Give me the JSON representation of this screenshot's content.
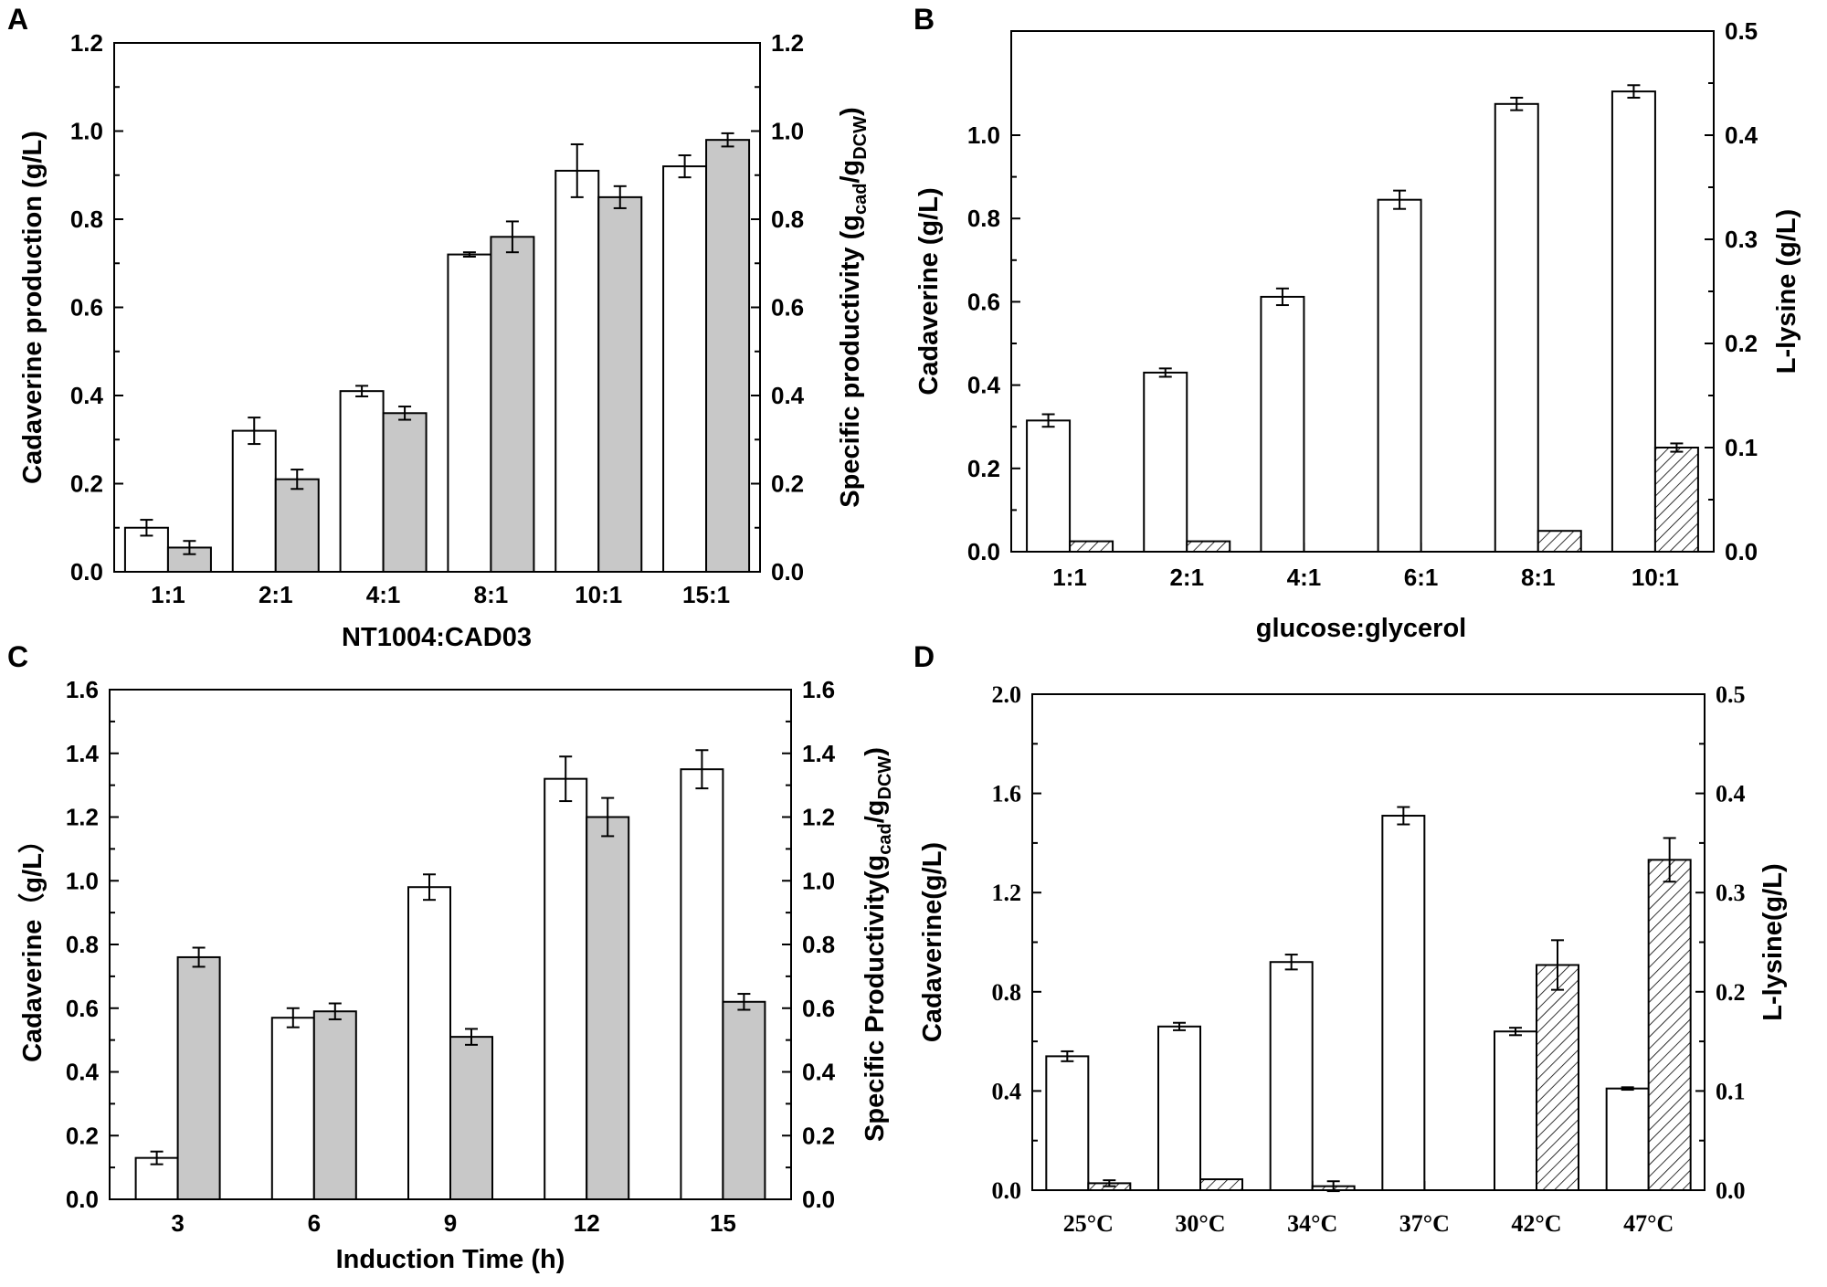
{
  "chart_data": [
    {
      "panel": "A",
      "type": "bar",
      "xlabel": "NT1004:CAD03",
      "ylabel": "Cadaverine production (g/L)",
      "ylabel_right": {
        "main": "Specific productivity (g",
        "sub1": "cad",
        "mid": "/g",
        "sub2": "DCW",
        "end": ")"
      },
      "categories": [
        "1:1",
        "2:1",
        "4:1",
        "8:1",
        "10:1",
        "15:1"
      ],
      "ylim": [
        0,
        1.2
      ],
      "ylim_right": [
        0,
        1.2
      ],
      "yticks": [
        "0.0",
        "0.2",
        "0.4",
        "0.6",
        "0.8",
        "1.0",
        "1.2"
      ],
      "yticks_right": [
        "0.0",
        "0.2",
        "0.4",
        "0.6",
        "0.8",
        "1.0",
        "1.2"
      ],
      "series": [
        {
          "name": "Cadaverine production",
          "axis": "left",
          "fill": "#ffffff",
          "hatch": false,
          "values": [
            0.1,
            0.32,
            0.41,
            0.72,
            0.91,
            0.92
          ],
          "errors": [
            0.018,
            0.03,
            0.012,
            0.005,
            0.06,
            0.025
          ]
        },
        {
          "name": "Specific productivity",
          "axis": "right",
          "fill": "#c8c8c8",
          "hatch": false,
          "values": [
            0.055,
            0.21,
            0.36,
            0.76,
            0.85,
            0.98
          ],
          "errors": [
            0.015,
            0.022,
            0.015,
            0.035,
            0.025,
            0.015
          ]
        }
      ]
    },
    {
      "panel": "B",
      "type": "bar",
      "xlabel": "glucose:glycerol",
      "ylabel": "Cadaverine (g/L)",
      "ylabel_right": {
        "main": "L-lysine (g/L)"
      },
      "categories": [
        "1:1",
        "2:1",
        "4:1",
        "6:1",
        "8:1",
        "10:1"
      ],
      "ylim": [
        0,
        1.25
      ],
      "ylim_right": [
        0,
        0.5
      ],
      "yticks": [
        "0.0",
        "0.2",
        "0.4",
        "0.6",
        "0.8",
        "1.0"
      ],
      "yticks_right": [
        "0.0",
        "0.1",
        "0.2",
        "0.3",
        "0.4",
        "0.5"
      ],
      "series": [
        {
          "name": "Cadaverine",
          "axis": "left",
          "fill": "#ffffff",
          "hatch": false,
          "values": [
            0.315,
            0.43,
            0.612,
            0.845,
            1.075,
            1.105
          ],
          "errors": [
            0.015,
            0.01,
            0.02,
            0.022,
            0.015,
            0.015
          ]
        },
        {
          "name": "L-lysine",
          "axis": "right",
          "fill": "#ffffff",
          "hatch": true,
          "values": [
            0.01,
            0.01,
            0,
            0,
            0.02,
            0.1
          ],
          "errors": [
            0,
            0,
            0,
            0,
            0,
            0.004
          ]
        }
      ]
    },
    {
      "panel": "C",
      "type": "bar",
      "xlabel": "Induction Time (h)",
      "ylabel": "Cadaverine（g/L）",
      "ylabel_right": {
        "main": "Specific Productivity(g",
        "sub1": "cad",
        "mid": "/g",
        "sub2": "DCW",
        "end": ")"
      },
      "categories": [
        "3",
        "6",
        "9",
        "12",
        "15"
      ],
      "ylim": [
        0,
        1.6
      ],
      "ylim_right": [
        0,
        1.6
      ],
      "yticks": [
        "0.0",
        "0.2",
        "0.4",
        "0.6",
        "0.8",
        "1.0",
        "1.2",
        "1.4",
        "1.6"
      ],
      "yticks_right": [
        "0.0",
        "0.2",
        "0.4",
        "0.6",
        "0.8",
        "1.0",
        "1.2",
        "1.4",
        "1.6"
      ],
      "series": [
        {
          "name": "Cadaverine",
          "axis": "left",
          "fill": "#ffffff",
          "hatch": false,
          "values": [
            0.13,
            0.57,
            0.98,
            1.32,
            1.35
          ],
          "errors": [
            0.02,
            0.03,
            0.04,
            0.07,
            0.06
          ]
        },
        {
          "name": "Specific Productivity",
          "axis": "right",
          "fill": "#c8c8c8",
          "hatch": false,
          "values": [
            0.76,
            0.59,
            0.51,
            1.2,
            0.62
          ],
          "errors": [
            0.03,
            0.025,
            0.025,
            0.06,
            0.025
          ]
        }
      ]
    },
    {
      "panel": "D",
      "type": "bar",
      "xlabel": "",
      "ylabel": "Cadaverine(g/L)",
      "ylabel_right": {
        "main": "L-lysine(g/L)"
      },
      "categories": [
        "25°C",
        "30°C",
        "34°C",
        "37°C",
        "42°C",
        "47°C"
      ],
      "ylim": [
        0,
        2.0
      ],
      "ylim_right": [
        0,
        0.5
      ],
      "yticks": [
        "0.0",
        "0.4",
        "0.8",
        "1.2",
        "1.6",
        "2.0"
      ],
      "yticks_right": [
        "0.0",
        "0.1",
        "0.2",
        "0.3",
        "0.4",
        "0.5"
      ],
      "series": [
        {
          "name": "Cadaverine",
          "axis": "left",
          "fill": "#ffffff",
          "hatch": false,
          "values": [
            0.54,
            0.66,
            0.92,
            1.51,
            0.64,
            0.41
          ],
          "errors": [
            0.02,
            0.015,
            0.03,
            0.035,
            0.015,
            0.005
          ]
        },
        {
          "name": "L-lysine",
          "axis": "right",
          "fill": "#ffffff",
          "hatch": true,
          "values": [
            0.007,
            0.011,
            0.004,
            0,
            0.227,
            0.333
          ],
          "errors": [
            0.003,
            0,
            0.005,
            0,
            0.025,
            0.022
          ]
        }
      ]
    }
  ]
}
